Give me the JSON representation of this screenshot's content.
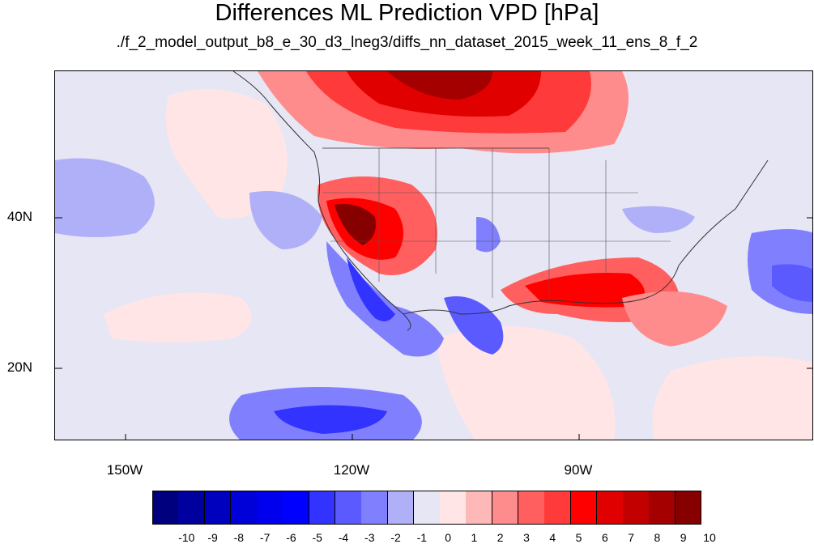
{
  "title": "Differences ML Prediction VPD [hPa]",
  "subtitle": "./f_2_model_output_b8_e_30_d3_lneg3/diffs_nn_dataset_2015_week_11_ens_8_f_2",
  "lat_labels": [
    "40N",
    "20N"
  ],
  "lon_labels": [
    "150W",
    "120W",
    "90W"
  ],
  "colorbar": {
    "labels": [
      "-10",
      "-9",
      "-8",
      "-7",
      "-6",
      "-5",
      "-4",
      "-3",
      "-2",
      "-1",
      "0",
      "1",
      "2",
      "3",
      "4",
      "5",
      "6",
      "7",
      "8",
      "9",
      "10"
    ],
    "colors": [
      "#00007f",
      "#00009f",
      "#0000bf",
      "#0000d8",
      "#0000ee",
      "#0000ff",
      "#3333ff",
      "#5a5aff",
      "#8080ff",
      "#b0b0f8",
      "#e6e6f5",
      "#ffe5e5",
      "#ffb8b8",
      "#ff8c8c",
      "#ff5f5f",
      "#ff3a3a",
      "#ff0000",
      "#e00000",
      "#c20000",
      "#a50000",
      "#870000"
    ]
  }
}
